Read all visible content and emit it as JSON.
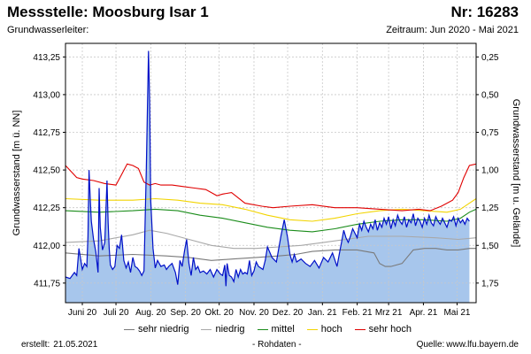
{
  "header": {
    "station": "Messstelle: Moosburg Isar 1",
    "number": "Nr: 16283",
    "aquifer": "Grundwasserleiter:",
    "period": "Zeitraum: Jun 2020 - Mai 2021"
  },
  "footer": {
    "created_label": "erstellt:",
    "created_date": "21.05.2021",
    "raw_note": "- Rohdaten -",
    "source_label": "Quelle:",
    "source_url": "www.lfu.bayern.de"
  },
  "colors": {
    "area_fill": "#a7c6ec",
    "measured_line": "#0010c8",
    "grid": "#c8c8c8",
    "sehr_niedrig": "#7a7a7a",
    "niedrig": "#a8a8a8",
    "mittel": "#1a8c1a",
    "hoch": "#f2d400",
    "sehr_hoch": "#e00000"
  },
  "chart_data": {
    "type": "area",
    "ylabel": "Grundwasserstand [m ü. NN]",
    "ylabel_right": "Grundwasserstand [m u. Gelände]",
    "ylim": [
      411.62,
      413.34
    ],
    "y_ticks": [
      "411,75",
      "412,00",
      "412,25",
      "412,50",
      "412,75",
      "413,00",
      "413,25"
    ],
    "y_tick_values": [
      411.75,
      412.0,
      412.25,
      412.5,
      412.75,
      413.0,
      413.25
    ],
    "y2_ticks": [
      "0,25",
      "0,50",
      "0,75",
      "1,00",
      "1,25",
      "1,50",
      "1,75"
    ],
    "x_ticks": [
      "Juni 20",
      "Juli 20",
      "Aug. 20",
      "Sep. 20",
      "Okt. 20",
      "Nov. 20",
      "Dez. 20",
      "Jan. 21",
      "Feb. 21",
      "Mrz 21",
      "Apr. 21",
      "Mai 21"
    ],
    "x_tick_days": [
      15,
      45,
      76,
      107,
      137,
      168,
      198,
      229,
      260,
      288,
      319,
      349
    ],
    "xlim_days": [
      0,
      366
    ],
    "grid": true,
    "legend_position": "bottom",
    "measured_series": {
      "days": [
        0,
        4,
        8,
        10,
        12,
        15,
        17,
        19,
        20,
        21,
        22,
        23,
        25,
        27,
        29,
        30,
        31,
        33,
        35,
        37,
        38,
        39,
        40,
        42,
        44,
        46,
        48,
        50,
        52,
        54,
        56,
        58,
        60,
        62,
        64,
        66,
        68,
        70,
        72,
        73,
        74,
        75,
        76,
        78,
        80,
        82,
        85,
        88,
        90,
        92,
        95,
        98,
        100,
        102,
        104,
        106,
        108,
        110,
        112,
        114,
        116,
        118,
        120,
        123,
        126,
        129,
        132,
        135,
        138,
        140,
        142,
        143,
        144,
        146,
        148,
        150,
        152,
        154,
        156,
        158,
        160,
        162,
        164,
        166,
        168,
        170,
        172,
        174,
        176,
        178,
        180,
        184,
        188,
        192,
        195,
        198,
        200,
        202,
        204,
        206,
        210,
        214,
        218,
        222,
        226,
        230,
        234,
        238,
        242,
        244,
        246,
        248,
        250,
        252,
        254,
        256,
        258,
        260,
        262,
        264,
        266,
        268,
        270,
        272,
        274,
        276,
        278,
        280,
        282,
        284,
        286,
        288,
        290,
        292,
        294,
        296,
        298,
        300,
        302,
        304,
        306,
        308,
        310,
        312,
        314,
        316,
        318,
        320,
        322,
        324,
        326,
        328,
        330,
        332,
        334,
        336,
        338,
        340,
        342,
        344,
        346,
        348,
        350,
        352,
        354,
        356,
        358,
        360
      ],
      "values": [
        411.79,
        411.78,
        411.82,
        411.8,
        411.98,
        411.84,
        411.88,
        411.86,
        412.06,
        412.5,
        412.32,
        412.16,
        412.04,
        411.96,
        411.82,
        412.38,
        412.12,
        411.97,
        412.02,
        412.43,
        412.15,
        411.98,
        411.87,
        411.84,
        411.86,
        412.0,
        411.98,
        412.07,
        411.9,
        411.85,
        411.89,
        411.82,
        411.92,
        411.86,
        411.85,
        411.83,
        411.8,
        411.83,
        412.5,
        412.88,
        413.29,
        412.95,
        412.3,
        411.98,
        411.85,
        411.9,
        411.86,
        411.87,
        411.84,
        411.86,
        411.88,
        411.82,
        411.74,
        411.9,
        411.86,
        411.96,
        412.04,
        411.88,
        411.8,
        411.92,
        411.84,
        411.86,
        411.82,
        411.83,
        411.81,
        411.84,
        411.79,
        411.84,
        411.81,
        411.8,
        411.87,
        411.73,
        411.88,
        411.8,
        411.79,
        411.76,
        411.84,
        411.79,
        411.84,
        411.81,
        411.82,
        411.81,
        411.9,
        411.8,
        411.83,
        411.89,
        411.86,
        411.85,
        411.84,
        411.9,
        411.99,
        411.92,
        411.89,
        412.06,
        412.17,
        412.05,
        411.94,
        411.89,
        411.94,
        411.89,
        411.91,
        411.88,
        411.86,
        411.9,
        411.85,
        411.92,
        411.89,
        411.95,
        411.86,
        411.94,
        412.02,
        412.1,
        412.05,
        412.02,
        412.06,
        412.11,
        412.08,
        412.05,
        412.14,
        412.1,
        412.16,
        412.12,
        412.09,
        412.14,
        412.11,
        412.17,
        412.1,
        412.15,
        412.12,
        412.18,
        412.14,
        412.19,
        412.11,
        412.17,
        412.13,
        412.2,
        412.16,
        412.14,
        412.19,
        412.12,
        412.17,
        412.15,
        412.21,
        412.13,
        412.18,
        412.16,
        412.12,
        412.18,
        412.14,
        412.2,
        412.15,
        412.13,
        412.19,
        412.16,
        412.14,
        412.18,
        412.15,
        412.12,
        412.17,
        412.16,
        412.19,
        412.13,
        412.18,
        412.15,
        412.17,
        412.14,
        412.18,
        412.16
      ]
    },
    "series": [
      {
        "name": "sehr niedrig",
        "color_key": "sehr_niedrig",
        "days": [
          0,
          30,
          60,
          90,
          110,
          130,
          150,
          170,
          190,
          205,
          220,
          240,
          260,
          275,
          280,
          285,
          290,
          300,
          310,
          320,
          330,
          340,
          350,
          360,
          366
        ],
        "values": [
          411.95,
          411.93,
          411.94,
          411.93,
          411.92,
          411.9,
          411.91,
          411.92,
          411.93,
          411.94,
          411.96,
          411.97,
          411.97,
          411.95,
          411.88,
          411.86,
          411.86,
          411.88,
          411.97,
          411.98,
          411.98,
          411.97,
          411.97,
          411.98,
          411.98
        ]
      },
      {
        "name": "niedrig",
        "color_key": "niedrig",
        "days": [
          0,
          30,
          60,
          75,
          90,
          110,
          130,
          150,
          170,
          190,
          210,
          230,
          250,
          270,
          300,
          330,
          350,
          366
        ],
        "values": [
          412.02,
          412.03,
          412.07,
          412.1,
          412.08,
          412.04,
          412.0,
          411.98,
          411.98,
          411.99,
          412.0,
          412.02,
          412.04,
          412.06,
          412.06,
          412.05,
          412.04,
          412.05
        ]
      },
      {
        "name": "mittel",
        "color_key": "mittel",
        "days": [
          0,
          30,
          60,
          80,
          100,
          120,
          140,
          160,
          180,
          200,
          220,
          240,
          260,
          280,
          300,
          320,
          340,
          352,
          360,
          366
        ],
        "values": [
          412.23,
          412.22,
          412.23,
          412.24,
          412.23,
          412.2,
          412.18,
          412.15,
          412.12,
          412.1,
          412.09,
          412.11,
          412.14,
          412.16,
          412.17,
          412.17,
          412.16,
          412.18,
          412.22,
          412.24
        ]
      },
      {
        "name": "hoch",
        "color_key": "hoch",
        "days": [
          0,
          30,
          60,
          80,
          100,
          120,
          140,
          160,
          180,
          200,
          220,
          240,
          260,
          280,
          300,
          320,
          340,
          352,
          360,
          366
        ],
        "values": [
          412.31,
          412.3,
          412.3,
          412.31,
          412.3,
          412.28,
          412.27,
          412.24,
          412.2,
          412.17,
          412.16,
          412.18,
          412.21,
          412.23,
          412.24,
          412.23,
          412.22,
          412.24,
          412.28,
          412.31
        ]
      },
      {
        "name": "sehr hoch",
        "color_key": "sehr_hoch",
        "days": [
          0,
          5,
          10,
          15,
          25,
          35,
          45,
          50,
          55,
          60,
          65,
          70,
          75,
          80,
          85,
          95,
          105,
          115,
          125,
          130,
          135,
          140,
          148,
          160,
          175,
          185,
          200,
          220,
          240,
          260,
          280,
          300,
          315,
          325,
          335,
          345,
          350,
          355,
          360,
          366
        ],
        "values": [
          412.53,
          412.49,
          412.45,
          412.44,
          412.43,
          412.41,
          412.4,
          412.47,
          412.54,
          412.53,
          412.51,
          412.42,
          412.4,
          412.41,
          412.4,
          412.4,
          412.39,
          412.38,
          412.37,
          412.35,
          412.33,
          412.34,
          412.35,
          412.28,
          412.26,
          412.25,
          412.26,
          412.27,
          412.25,
          412.25,
          412.24,
          412.23,
          412.24,
          412.23,
          412.26,
          412.3,
          412.35,
          412.45,
          412.53,
          412.54
        ]
      }
    ]
  }
}
